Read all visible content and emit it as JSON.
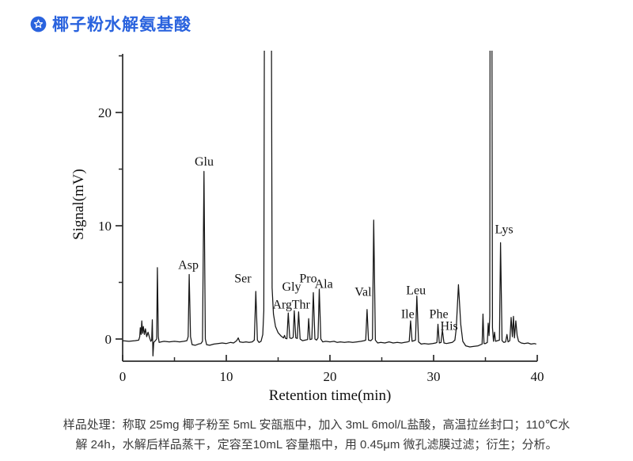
{
  "header": {
    "title": "椰子粉水解氨基酸",
    "accent_color": "#2a63de",
    "icon": "badge-star-icon"
  },
  "chart_data": {
    "type": "line",
    "xlabel": "Retention time(min)",
    "ylabel": "Signal(mV)",
    "xlim": [
      0,
      40
    ],
    "ylim": [
      -2,
      25.2
    ],
    "x_major_ticks": [
      0,
      10,
      20,
      30,
      40
    ],
    "x_minor_ticks": [
      5,
      15,
      25,
      35
    ],
    "y_major_ticks": [
      0,
      10,
      20
    ],
    "y_minor_ticks": [
      5,
      15,
      25
    ],
    "grid": false,
    "legend": "none",
    "line_color": "#161616",
    "axis_color": "#2b2b2b",
    "peaks": [
      {
        "label": "",
        "retention_min": 3.4,
        "height_mV": 6.3
      },
      {
        "label": "Asp",
        "retention_min": 6.4,
        "height_mV": 5.7
      },
      {
        "label": "Glu",
        "retention_min": 7.9,
        "height_mV": 14.8
      },
      {
        "label": "Ser",
        "retention_min": 12.9,
        "height_mV": 4.2
      },
      {
        "label": "",
        "retention_min": 14.0,
        "height_mV": 25.2,
        "clipped": true
      },
      {
        "label": "Arg",
        "retention_min": 16.0,
        "height_mV": 2.3
      },
      {
        "label": "Gly",
        "retention_min": 16.6,
        "height_mV": 2.5
      },
      {
        "label": "Thr",
        "retention_min": 17.0,
        "height_mV": 2.4
      },
      {
        "label": "",
        "retention_min": 18.0,
        "height_mV": 1.8
      },
      {
        "label": "Pro",
        "retention_min": 18.4,
        "height_mV": 4.1
      },
      {
        "label": "Ala",
        "retention_min": 19.0,
        "height_mV": 4.4
      },
      {
        "label": "Val",
        "retention_min": 23.6,
        "height_mV": 2.6
      },
      {
        "label": "",
        "retention_min": 24.2,
        "height_mV": 10.5
      },
      {
        "label": "Ile",
        "retention_min": 27.8,
        "height_mV": 1.6
      },
      {
        "label": "Leu",
        "retention_min": 28.4,
        "height_mV": 3.8
      },
      {
        "label": "Phe",
        "retention_min": 30.4,
        "height_mV": 1.3
      },
      {
        "label": "His",
        "retention_min": 31.1,
        "height_mV": 0.8
      },
      {
        "label": "",
        "retention_min": 32.3,
        "height_mV": 4.8
      },
      {
        "label": "",
        "retention_min": 34.7,
        "height_mV": 2.2
      },
      {
        "label": "",
        "retention_min": 35.5,
        "height_mV": 25.2,
        "clipped": true
      },
      {
        "label": "Lys",
        "retention_min": 36.5,
        "height_mV": 8.5
      }
    ],
    "annotations": [
      {
        "text": "Asp",
        "t": 6.34,
        "mV": 6.2
      },
      {
        "text": "Glu",
        "t": 7.86,
        "mV": 15.3
      },
      {
        "text": "Ser",
        "t": 11.6,
        "mV": 5.0
      },
      {
        "text": "Arg",
        "t": 15.4,
        "mV": 2.7
      },
      {
        "text": "Gly",
        "t": 16.3,
        "mV": 4.25
      },
      {
        "text": "Thr",
        "t": 17.2,
        "mV": 2.7
      },
      {
        "text": "Pro",
        "t": 17.9,
        "mV": 5.0
      },
      {
        "text": "Ala",
        "t": 19.4,
        "mV": 4.5
      },
      {
        "text": "Val",
        "t": 23.2,
        "mV": 3.8
      },
      {
        "text": "Ile",
        "t": 27.5,
        "mV": 1.85
      },
      {
        "text": "Leu",
        "t": 28.3,
        "mV": 3.95
      },
      {
        "text": "Phe",
        "t": 30.5,
        "mV": 1.85
      },
      {
        "text": "His",
        "t": 31.5,
        "mV": 0.8
      },
      {
        "text": "Lys",
        "t": 36.8,
        "mV": 9.35
      }
    ],
    "trace": [
      [
        0,
        -0.15
      ],
      [
        0.6,
        -0.2
      ],
      [
        1.2,
        -0.15
      ],
      [
        1.55,
        -0.1
      ],
      [
        1.65,
        0.2
      ],
      [
        1.7,
        1.0
      ],
      [
        1.78,
        0.4
      ],
      [
        1.85,
        1.6
      ],
      [
        1.92,
        0.5
      ],
      [
        2.0,
        1.1
      ],
      [
        2.1,
        0.4
      ],
      [
        2.2,
        0.9
      ],
      [
        2.32,
        0.2
      ],
      [
        2.45,
        0.6
      ],
      [
        2.6,
        0.1
      ],
      [
        2.72,
        -0.2
      ],
      [
        2.8,
        -0.1
      ],
      [
        2.86,
        1.7
      ],
      [
        2.92,
        -1.5
      ],
      [
        3.0,
        -0.3
      ],
      [
        3.15,
        -0.15
      ],
      [
        3.28,
        0.0
      ],
      [
        3.35,
        6.3
      ],
      [
        3.44,
        0.2
      ],
      [
        3.52,
        -0.3
      ],
      [
        3.7,
        -0.25
      ],
      [
        4.0,
        -0.2
      ],
      [
        4.5,
        -0.25
      ],
      [
        5.0,
        -0.2
      ],
      [
        5.5,
        -0.25
      ],
      [
        5.9,
        -0.2
      ],
      [
        6.2,
        -0.15
      ],
      [
        6.32,
        0.2
      ],
      [
        6.42,
        5.7
      ],
      [
        6.55,
        0.2
      ],
      [
        6.7,
        -0.5
      ],
      [
        7.0,
        -0.55
      ],
      [
        7.3,
        -0.45
      ],
      [
        7.55,
        -0.4
      ],
      [
        7.7,
        -0.2
      ],
      [
        7.85,
        14.8
      ],
      [
        7.98,
        0.0
      ],
      [
        8.1,
        -0.5
      ],
      [
        8.4,
        -0.55
      ],
      [
        8.8,
        -0.45
      ],
      [
        9.2,
        -0.4
      ],
      [
        9.6,
        -0.35
      ],
      [
        10.0,
        -0.4
      ],
      [
        10.4,
        -0.3
      ],
      [
        10.7,
        -0.35
      ],
      [
        11.0,
        -0.15
      ],
      [
        11.15,
        0.1
      ],
      [
        11.3,
        -0.25
      ],
      [
        11.6,
        -0.3
      ],
      [
        11.9,
        -0.25
      ],
      [
        12.2,
        -0.3
      ],
      [
        12.5,
        -0.25
      ],
      [
        12.7,
        -0.1
      ],
      [
        12.85,
        4.2
      ],
      [
        13.0,
        -0.1
      ],
      [
        13.15,
        -0.3
      ],
      [
        13.35,
        -0.2
      ],
      [
        13.52,
        0.4
      ],
      [
        13.62,
        2.5
      ],
      [
        13.7,
        40
      ],
      [
        14.32,
        40
      ],
      [
        14.42,
        4.5
      ],
      [
        14.55,
        2.2
      ],
      [
        14.75,
        1.1
      ],
      [
        15.0,
        0.55
      ],
      [
        15.3,
        0.25
      ],
      [
        15.52,
        0.1
      ],
      [
        15.62,
        0.32
      ],
      [
        15.72,
        0.05
      ],
      [
        15.85,
        0.02
      ],
      [
        15.98,
        2.3
      ],
      [
        16.12,
        0.1
      ],
      [
        16.3,
        0.05
      ],
      [
        16.45,
        0.15
      ],
      [
        16.56,
        2.5
      ],
      [
        16.7,
        0.1
      ],
      [
        16.85,
        0.05
      ],
      [
        16.98,
        2.4
      ],
      [
        17.12,
        0.0
      ],
      [
        17.35,
        -0.15
      ],
      [
        17.6,
        -0.1
      ],
      [
        17.85,
        -0.05
      ],
      [
        17.95,
        1.8
      ],
      [
        18.08,
        -0.05
      ],
      [
        18.25,
        0.0
      ],
      [
        18.4,
        4.1
      ],
      [
        18.55,
        0.0
      ],
      [
        18.7,
        -0.1
      ],
      [
        18.85,
        0.1
      ],
      [
        18.97,
        4.4
      ],
      [
        19.12,
        0.0
      ],
      [
        19.3,
        -0.25
      ],
      [
        19.6,
        -0.2
      ],
      [
        20.0,
        -0.25
      ],
      [
        20.4,
        -0.2
      ],
      [
        20.7,
        -0.3
      ],
      [
        21.0,
        -0.25
      ],
      [
        21.4,
        -0.3
      ],
      [
        21.8,
        -0.25
      ],
      [
        22.2,
        -0.3
      ],
      [
        22.6,
        -0.25
      ],
      [
        23.0,
        -0.2
      ],
      [
        23.3,
        -0.15
      ],
      [
        23.45,
        -0.1
      ],
      [
        23.58,
        2.6
      ],
      [
        23.72,
        -0.1
      ],
      [
        23.95,
        -0.15
      ],
      [
        24.1,
        0.0
      ],
      [
        24.22,
        10.5
      ],
      [
        24.38,
        -0.1
      ],
      [
        24.6,
        -0.35
      ],
      [
        24.9,
        -0.3
      ],
      [
        25.3,
        -0.35
      ],
      [
        25.7,
        -0.25
      ],
      [
        26.1,
        -0.35
      ],
      [
        26.5,
        -0.3
      ],
      [
        26.9,
        -0.35
      ],
      [
        27.2,
        -0.3
      ],
      [
        27.5,
        -0.25
      ],
      [
        27.65,
        -0.2
      ],
      [
        27.78,
        1.6
      ],
      [
        27.92,
        -0.2
      ],
      [
        28.1,
        -0.15
      ],
      [
        28.25,
        -0.1
      ],
      [
        28.38,
        3.8
      ],
      [
        28.55,
        -0.25
      ],
      [
        28.8,
        -0.45
      ],
      [
        29.1,
        -0.4
      ],
      [
        29.5,
        -0.45
      ],
      [
        29.9,
        -0.4
      ],
      [
        30.2,
        -0.35
      ],
      [
        30.32,
        -0.3
      ],
      [
        30.42,
        1.3
      ],
      [
        30.55,
        -0.35
      ],
      [
        30.72,
        -0.3
      ],
      [
        30.85,
        0.8
      ],
      [
        31.0,
        -0.35
      ],
      [
        31.25,
        -0.4
      ],
      [
        31.5,
        -0.35
      ],
      [
        31.8,
        -0.3
      ],
      [
        32.05,
        -0.1
      ],
      [
        32.18,
        0.9
      ],
      [
        32.4,
        4.8
      ],
      [
        32.62,
        1.3
      ],
      [
        32.82,
        -0.2
      ],
      [
        33.1,
        -0.6
      ],
      [
        33.5,
        -0.7
      ],
      [
        33.9,
        -0.65
      ],
      [
        34.3,
        -0.6
      ],
      [
        34.55,
        -0.5
      ],
      [
        34.68,
        -0.45
      ],
      [
        34.76,
        2.2
      ],
      [
        34.86,
        -0.4
      ],
      [
        35.0,
        -0.4
      ],
      [
        35.18,
        -0.3
      ],
      [
        35.27,
        1.4
      ],
      [
        35.35,
        0.3
      ],
      [
        35.42,
        2.0
      ],
      [
        35.46,
        40
      ],
      [
        35.6,
        40
      ],
      [
        35.68,
        1.0
      ],
      [
        35.78,
        -0.2
      ],
      [
        35.88,
        0.6
      ],
      [
        35.98,
        -0.2
      ],
      [
        36.15,
        -0.15
      ],
      [
        36.35,
        -0.1
      ],
      [
        36.46,
        8.5
      ],
      [
        36.6,
        -0.15
      ],
      [
        36.78,
        -0.3
      ],
      [
        36.95,
        -0.25
      ],
      [
        37.08,
        0.4
      ],
      [
        37.18,
        -0.25
      ],
      [
        37.35,
        -0.15
      ],
      [
        37.48,
        1.9
      ],
      [
        37.6,
        0.2
      ],
      [
        37.7,
        2.0
      ],
      [
        37.8,
        0.1
      ],
      [
        37.93,
        1.6
      ],
      [
        38.06,
        0.3
      ],
      [
        38.2,
        -0.2
      ],
      [
        38.45,
        -0.35
      ],
      [
        38.75,
        -0.4
      ],
      [
        39.1,
        -0.35
      ],
      [
        39.4,
        -0.45
      ],
      [
        39.7,
        -0.4
      ],
      [
        39.9,
        -0.45
      ]
    ]
  },
  "caption": {
    "line1": "样品处理：称取 25mg 椰子粉至 5mL 安瓿瓶中，加入 3mL 6mol/L盐酸，高温拉丝封口；110℃水",
    "line2": "解 24h，水解后样品蒸干，定容至10mL 容量瓶中，用 0.45μm 微孔滤膜过滤；衍生；分析。"
  }
}
